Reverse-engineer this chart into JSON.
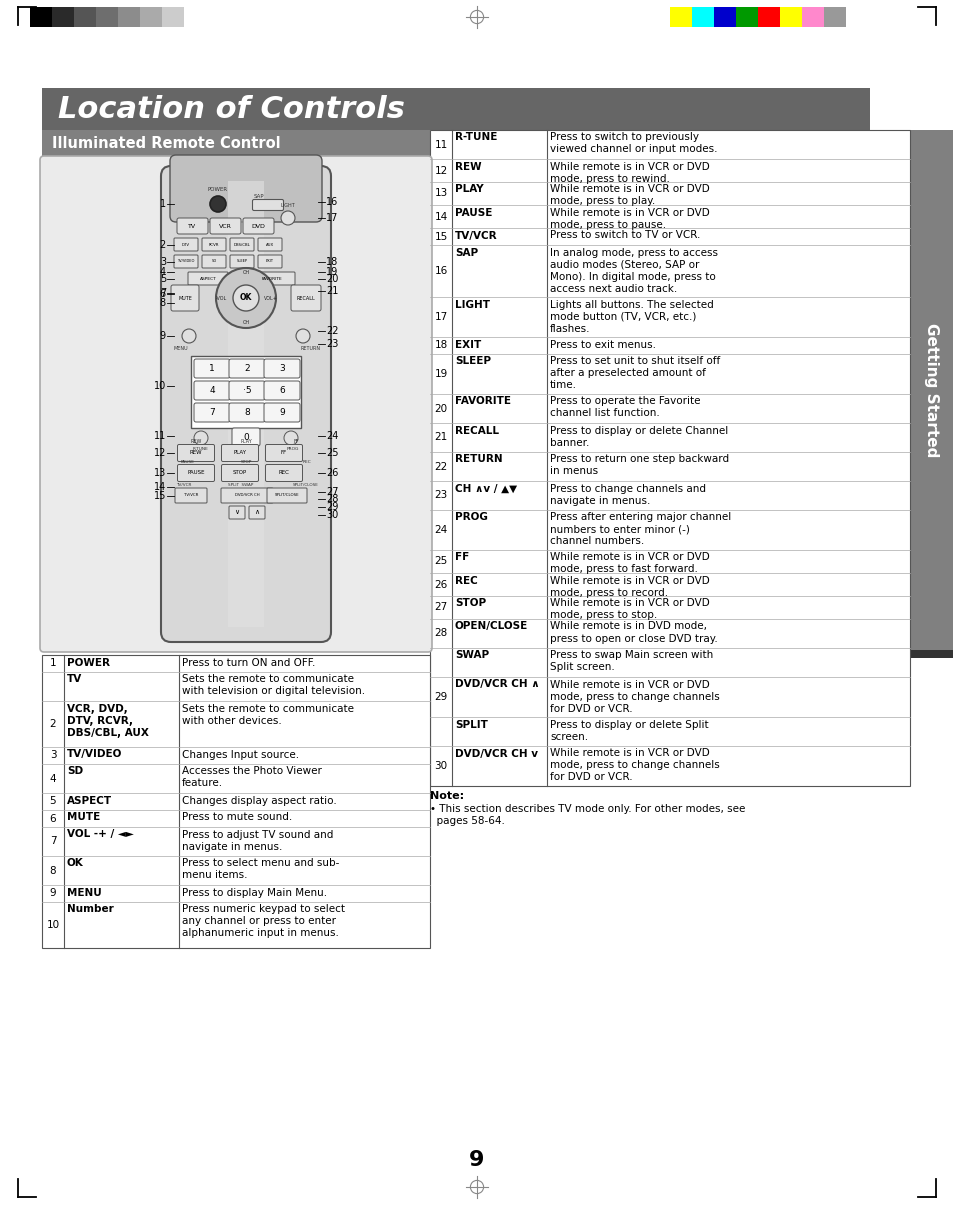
{
  "title": "Location of Controls",
  "title_bg": "#666666",
  "title_color": "#ffffff",
  "subtitle": "Illuminated Remote Control",
  "subtitle_bg": "#808080",
  "subtitle_color": "#ffffff",
  "page_bg": "#ffffff",
  "page_number": "9",
  "left_table": [
    [
      "1",
      "POWER",
      "Press to turn ON and OFF."
    ],
    [
      "",
      "TV",
      "Sets the remote to communicate\nwith television or digital television."
    ],
    [
      "2",
      "VCR, DVD,\nDTV, RCVR,\nDBS/CBL, AUX",
      "Sets the remote to communicate\nwith other devices."
    ],
    [
      "3",
      "TV/VIDEO",
      "Changes Input source."
    ],
    [
      "4",
      "SD",
      "Accesses the Photo Viewer\nfeature."
    ],
    [
      "5",
      "ASPECT",
      "Changes display aspect ratio."
    ],
    [
      "6",
      "MUTE",
      "Press to mute sound."
    ],
    [
      "7",
      "VOL -+ / ◄►",
      "Press to adjust TV sound and\nnavigate in menus."
    ],
    [
      "8",
      "OK",
      "Press to select menu and sub-\nmenu items."
    ],
    [
      "9",
      "MENU",
      "Press to display Main Menu."
    ],
    [
      "10",
      "Number",
      "Press numeric keypad to select\nany channel or press to enter\nalphanumeric input in menus."
    ]
  ],
  "right_table": [
    [
      "11",
      "R-TUNE",
      "Press to switch to previously\nviewed channel or input modes."
    ],
    [
      "12",
      "REW",
      "While remote is in VCR or DVD\nmode, press to rewind."
    ],
    [
      "13",
      "PLAY",
      "While remote is in VCR or DVD\nmode, press to play."
    ],
    [
      "14",
      "PAUSE",
      "While remote is in VCR or DVD\nmode, press to pause."
    ],
    [
      "15",
      "TV/VCR",
      "Press to switch to TV or VCR."
    ],
    [
      "16",
      "SAP",
      "In analog mode, press to access\naudio modes (Stereo, SAP or\nMono). In digital mode, press to\naccess next audio track."
    ],
    [
      "17",
      "LIGHT",
      "Lights all buttons. The selected\nmode button (TV, VCR, etc.)\nflashes."
    ],
    [
      "18",
      "EXIT",
      "Press to exit menus."
    ],
    [
      "19",
      "SLEEP",
      "Press to set unit to shut itself off\nafter a preselected amount of\ntime."
    ],
    [
      "20",
      "FAVORITE",
      "Press to operate the Favorite\nchannel list function."
    ],
    [
      "21",
      "RECALL",
      "Press to display or delete Channel\nbanner."
    ],
    [
      "22",
      "RETURN",
      "Press to return one step backward\nin menus"
    ],
    [
      "23",
      "CH ∧v / ▲▼",
      "Press to change channels and\nnavigate in menus."
    ],
    [
      "24",
      "PROG",
      "Press after entering major channel\nnumbers to enter minor (-)\nchannel numbers."
    ],
    [
      "25",
      "FF",
      "While remote is in VCR or DVD\nmode, press to fast forward."
    ],
    [
      "26",
      "REC",
      "While remote is in VCR or DVD\nmode, press to record."
    ],
    [
      "27",
      "STOP",
      "While remote is in VCR or DVD\nmode, press to stop."
    ],
    [
      "28",
      "OPEN/CLOSE",
      "While remote is in DVD mode,\npress to open or close DVD tray."
    ],
    [
      "",
      "SWAP",
      "Press to swap Main screen with\nSplit screen."
    ],
    [
      "29",
      "DVD/VCR CH ∧",
      "While remote is in VCR or DVD\nmode, press to change channels\nfor DVD or VCR."
    ],
    [
      "",
      "SPLIT",
      "Press to display or delete Split\nscreen."
    ],
    [
      "30",
      "DVD/VCR CH v",
      "While remote is in VCR or DVD\nmode, press to change channels\nfor DVD or VCR."
    ]
  ],
  "note_bold": "Note:",
  "note_body": "• This section describes TV mode only. For other modes, see\n  pages 58-64.",
  "sidebar_text": "Getting Started",
  "sidebar_bg": "#808080",
  "sidebar_color": "#ffffff",
  "grayscale_colors": [
    "#000000",
    "#2a2a2a",
    "#555555",
    "#6e6e6e",
    "#8c8c8c",
    "#aaaaaa",
    "#cccccc",
    "#ffffff"
  ],
  "color_bar_colors": [
    "#ffff00",
    "#00ffff",
    "#0000cc",
    "#009900",
    "#ff0000",
    "#ffff00",
    "#ff88cc",
    "#999999"
  ]
}
